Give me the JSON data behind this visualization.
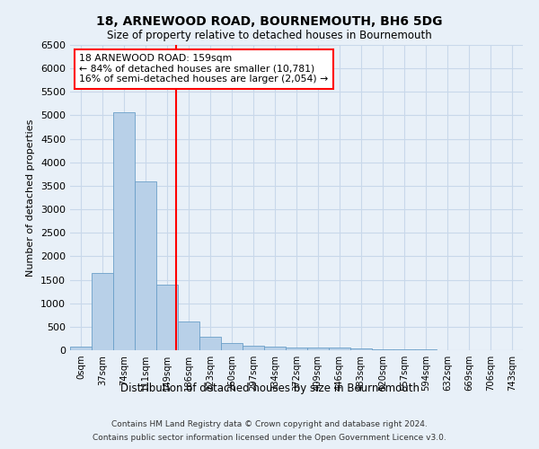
{
  "title": "18, ARNEWOOD ROAD, BOURNEMOUTH, BH6 5DG",
  "subtitle": "Size of property relative to detached houses in Bournemouth",
  "xlabel": "Distribution of detached houses by size in Bournemouth",
  "ylabel": "Number of detached properties",
  "footer_line1": "Contains HM Land Registry data © Crown copyright and database right 2024.",
  "footer_line2": "Contains public sector information licensed under the Open Government Licence v3.0.",
  "bar_labels": [
    "0sqm",
    "37sqm",
    "74sqm",
    "111sqm",
    "149sqm",
    "186sqm",
    "223sqm",
    "260sqm",
    "297sqm",
    "334sqm",
    "372sqm",
    "409sqm",
    "446sqm",
    "483sqm",
    "520sqm",
    "557sqm",
    "594sqm",
    "632sqm",
    "669sqm",
    "706sqm",
    "743sqm"
  ],
  "bar_values": [
    75,
    1650,
    5060,
    3600,
    1400,
    620,
    290,
    145,
    100,
    75,
    55,
    50,
    50,
    30,
    20,
    15,
    10,
    8,
    5,
    3,
    2
  ],
  "bar_color": "#b8d0e8",
  "bar_edge_color": "#6a9fc8",
  "grid_color": "#c8d8ea",
  "background_color": "#e8f0f8",
  "annotation_line1": "18 ARNEWOOD ROAD: 159sqm",
  "annotation_line2": "← 84% of detached houses are smaller (10,781)",
  "annotation_line3": "16% of semi-detached houses are larger (2,054) →",
  "annotation_box_color": "white",
  "annotation_box_edge_color": "red",
  "redline_x": 4.43,
  "ylim": [
    0,
    6500
  ],
  "yticks": [
    0,
    500,
    1000,
    1500,
    2000,
    2500,
    3000,
    3500,
    4000,
    4500,
    5000,
    5500,
    6000,
    6500
  ]
}
